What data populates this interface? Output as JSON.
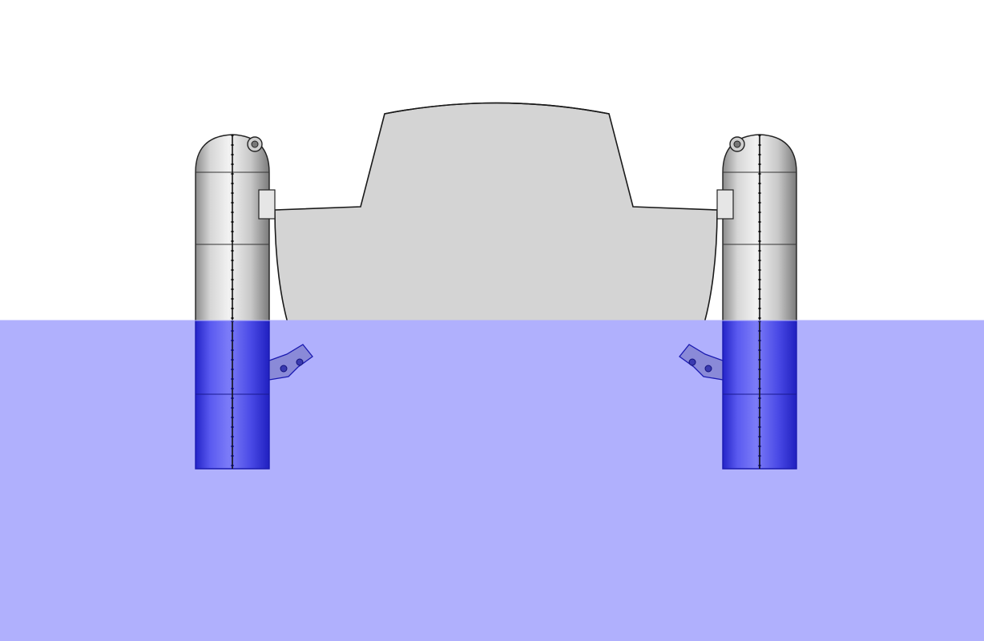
{
  "diagram": {
    "subject": "boat-hull-with-side-floats-cross-section",
    "colors": {
      "background": "#ffffff",
      "water": "#b0b0fd",
      "hull_above": "#d4d4d4",
      "hull_below": "#9696ea",
      "outline_above": "#1a1a1a",
      "outline_below": "#1e1ec8",
      "float_below_tint": "#3434e6"
    },
    "components": [
      "hull",
      "cabin",
      "left-float",
      "right-float",
      "left-bracket",
      "right-bracket",
      "waterline"
    ]
  }
}
